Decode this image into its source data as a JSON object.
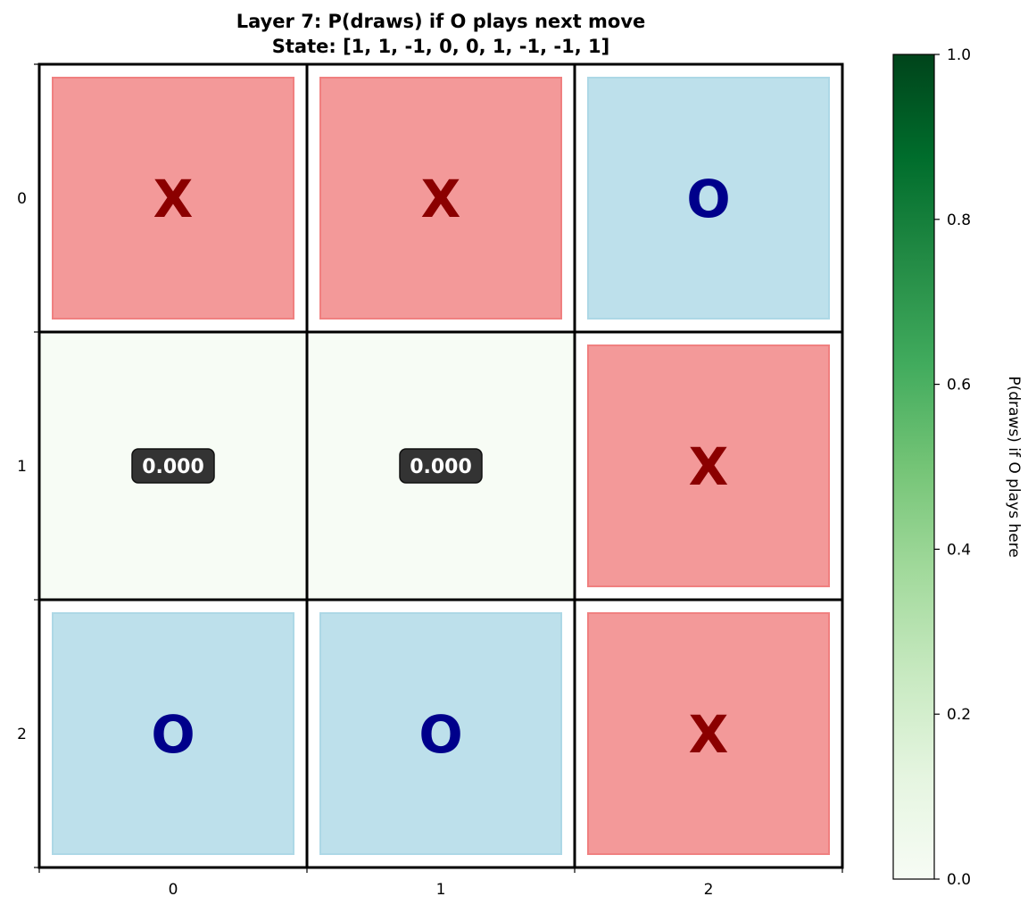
{
  "chart_data": {
    "type": "heatmap",
    "title": "Layer 7: P(draws) if O plays next move",
    "subtitle": "State: [1, 1, -1, 0, 0, 1, -1, -1, 1]",
    "rows": [
      0,
      1,
      2
    ],
    "cols": [
      0,
      1,
      2
    ],
    "x_tick_labels": [
      "0",
      "1",
      "2"
    ],
    "y_tick_labels": [
      "0",
      "1",
      "2"
    ],
    "cells": [
      {
        "row": 0,
        "col": 0,
        "kind": "piece",
        "text": "X"
      },
      {
        "row": 0,
        "col": 1,
        "kind": "piece",
        "text": "X"
      },
      {
        "row": 0,
        "col": 2,
        "kind": "piece",
        "text": "O"
      },
      {
        "row": 1,
        "col": 0,
        "kind": "value",
        "value": 0.0,
        "text": "0.000"
      },
      {
        "row": 1,
        "col": 1,
        "kind": "value",
        "value": 0.0,
        "text": "0.000"
      },
      {
        "row": 1,
        "col": 2,
        "kind": "piece",
        "text": "X"
      },
      {
        "row": 2,
        "col": 0,
        "kind": "piece",
        "text": "O"
      },
      {
        "row": 2,
        "col": 1,
        "kind": "piece",
        "text": "O"
      },
      {
        "row": 2,
        "col": 2,
        "kind": "piece",
        "text": "X"
      }
    ],
    "colorbar": {
      "label": "P(draws) if O plays here",
      "range": [
        0.0,
        1.0
      ],
      "ticks": [
        0.0,
        0.2,
        0.4,
        0.6,
        0.8,
        1.0
      ],
      "tick_labels": [
        "0.0",
        "0.2",
        "0.4",
        "0.6",
        "0.8",
        "1.0"
      ],
      "colormap": "Greens",
      "stops": [
        "#f7fcf5",
        "#e5f5e0",
        "#c7e9c0",
        "#a1d99b",
        "#74c476",
        "#41ab5d",
        "#238b45",
        "#006d2c",
        "#00441b"
      ]
    },
    "colors": {
      "x_fill": "#f08080",
      "x_text": "#8b0000",
      "o_fill": "#add8e6",
      "o_text": "#00008b",
      "value_label_bg": "#333333",
      "value_label_text": "#ffffff"
    }
  }
}
